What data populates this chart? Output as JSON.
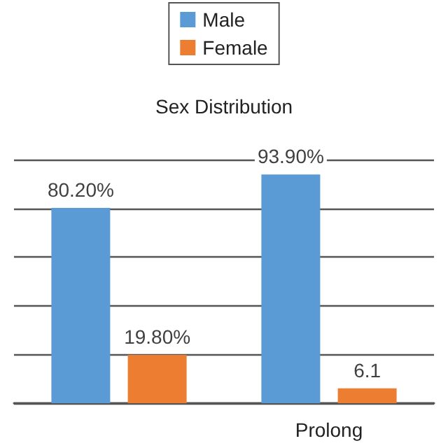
{
  "chart_data": {
    "type": "bar",
    "title": "Sex Distribution",
    "categories": [
      null,
      "Prolong"
    ],
    "series": [
      {
        "name": "Male",
        "color": "#5b9bd5",
        "values": [
          80.2,
          93.9
        ],
        "value_labels": [
          "80.20%",
          "93.90%"
        ]
      },
      {
        "name": "Female",
        "color": "#ed7d31",
        "values": [
          19.8,
          6.1
        ],
        "value_labels": [
          "19.80%",
          "6.1"
        ]
      }
    ],
    "ylim": [
      0,
      100
    ],
    "yticks": [
      {
        "value": 0,
        "label": null
      },
      {
        "value": 20,
        "label": null
      },
      {
        "value": 40,
        "label": null
      },
      {
        "value": 60,
        "label": null
      },
      {
        "value": 80,
        "label": null
      },
      {
        "value": 100,
        "label": null
      }
    ],
    "grid": "y",
    "legend": "top",
    "tick_labels": "x"
  }
}
